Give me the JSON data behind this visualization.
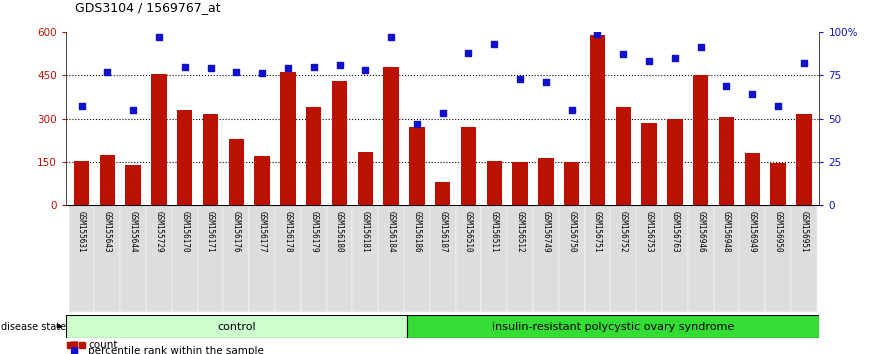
{
  "title": "GDS3104 / 1569767_at",
  "samples": [
    "GSM155631",
    "GSM155643",
    "GSM155644",
    "GSM155729",
    "GSM156170",
    "GSM156171",
    "GSM156176",
    "GSM156177",
    "GSM156178",
    "GSM156179",
    "GSM156180",
    "GSM156181",
    "GSM156184",
    "GSM156186",
    "GSM156187",
    "GSM156510",
    "GSM156511",
    "GSM156512",
    "GSM156749",
    "GSM156750",
    "GSM156751",
    "GSM156752",
    "GSM156753",
    "GSM156763",
    "GSM156946",
    "GSM156948",
    "GSM156949",
    "GSM156950",
    "GSM156951"
  ],
  "counts": [
    155,
    175,
    140,
    455,
    330,
    315,
    230,
    170,
    460,
    340,
    430,
    185,
    480,
    270,
    80,
    270,
    155,
    150,
    165,
    150,
    590,
    340,
    285,
    300,
    450,
    305,
    180,
    145,
    315
  ],
  "percentiles": [
    57,
    77,
    55,
    97,
    80,
    79,
    77,
    76,
    79,
    80,
    81,
    78,
    97,
    47,
    53,
    88,
    93,
    73,
    71,
    55,
    99,
    87,
    83,
    85,
    91,
    69,
    64,
    57,
    82
  ],
  "control_count": 13,
  "bar_color": "#BB1100",
  "dot_color": "#1111CC",
  "left_ylim": [
    0,
    600
  ],
  "right_ylim": [
    0,
    100
  ],
  "left_yticks": [
    0,
    150,
    300,
    450,
    600
  ],
  "right_yticks": [
    0,
    25,
    50,
    75,
    100
  ],
  "right_yticklabels": [
    "0",
    "25",
    "50",
    "75",
    "100%"
  ],
  "control_label": "control",
  "disease_label": "insulin-resistant polycystic ovary syndrome",
  "disease_state_label": "disease state",
  "control_bg": "#CCFFCC",
  "disease_bg": "#33DD33",
  "legend_count_label": "count",
  "legend_pct_label": "percentile rank within the sample",
  "xlabel_bg": "#DDDDDD"
}
